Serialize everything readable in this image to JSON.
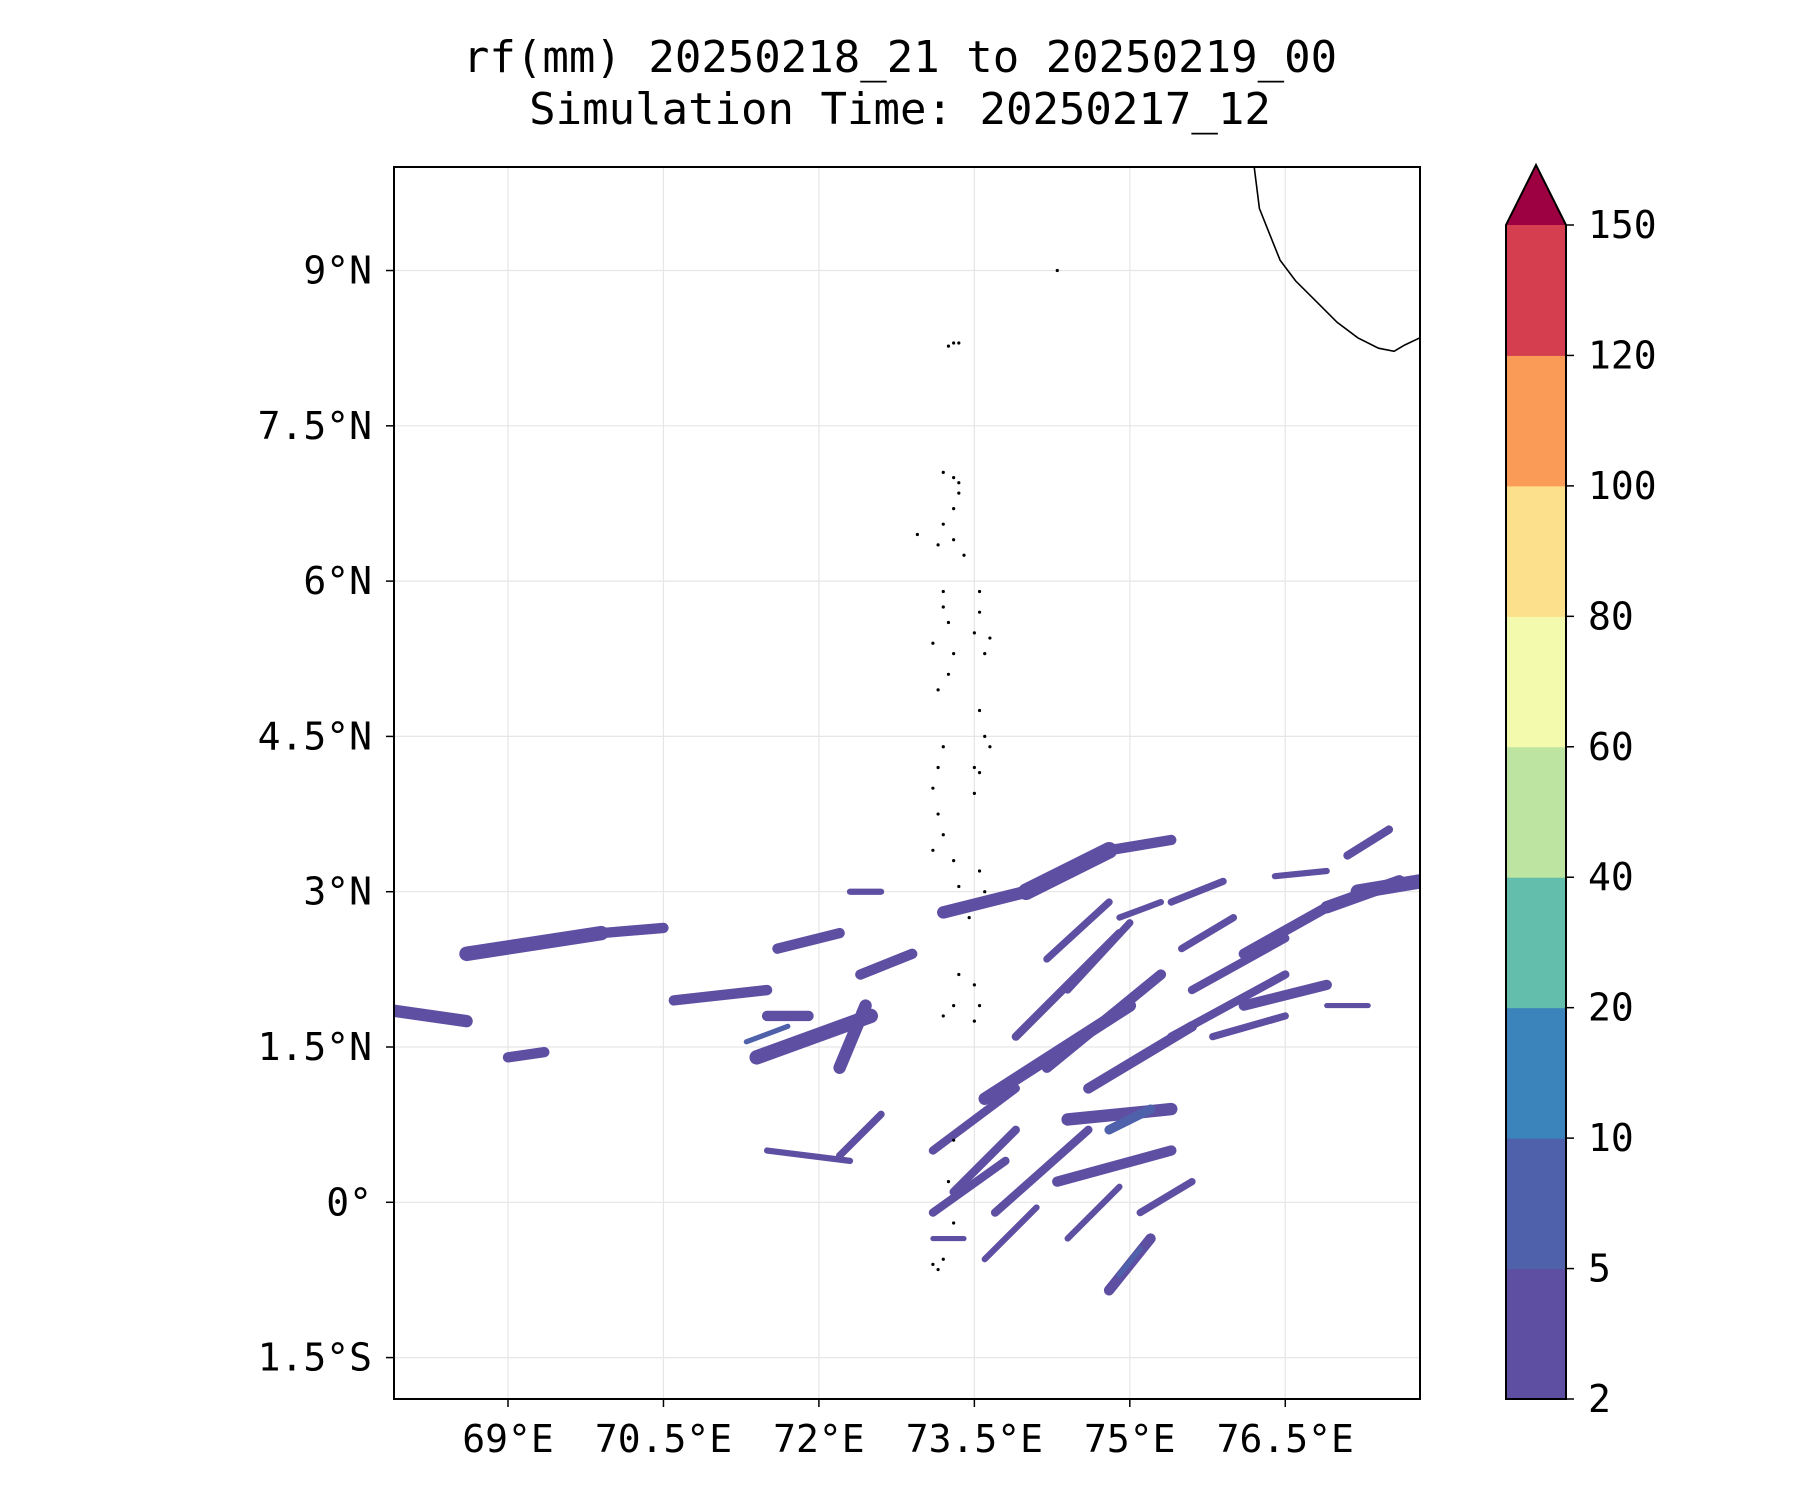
{
  "chart_data": {
    "type": "map-contourf",
    "title": [
      "rf(mm) 20250218_21 to 20250219_00",
      "Simulation Time: 20250217_12"
    ],
    "variable": "rf(mm)",
    "xlim": [
      67.9,
      77.8
    ],
    "ylim": [
      -1.9,
      10.0
    ],
    "x_ticks": [
      69,
      70.5,
      72,
      73.5,
      75,
      76.5
    ],
    "x_tick_labels": [
      "69°E",
      "70.5°E",
      "72°E",
      "73.5°E",
      "75°E",
      "76.5°E"
    ],
    "y_ticks": [
      9,
      7.5,
      6,
      4.5,
      3,
      1.5,
      0,
      -1.5
    ],
    "y_tick_labels": [
      "9°N",
      "7.5°N",
      "6°N",
      "4.5°N",
      "3°N",
      "1.5°N",
      "0°",
      "1.5°S"
    ],
    "grid": true,
    "colorbar": {
      "levels": [
        2,
        5,
        10,
        20,
        40,
        60,
        80,
        100,
        120,
        150
      ],
      "labels": [
        "2",
        "5",
        "10",
        "20",
        "40",
        "60",
        "80",
        "100",
        "120",
        "150"
      ],
      "colors": [
        "#5e4fa2",
        "#4f61aa",
        "#3b83bb",
        "#63bfab",
        "#bde4a0",
        "#f3faad",
        "#fce08b",
        "#fa9c58",
        "#d53e4f"
      ],
      "extend_color": "#9e0142",
      "extend": "max"
    },
    "rain_bands": [
      {
        "lon1": 67.9,
        "lat1": 1.85,
        "lon2": 68.6,
        "lat2": 1.75,
        "w": 0.12,
        "level": 0
      },
      {
        "lon1": 68.6,
        "lat1": 2.4,
        "lon2": 69.9,
        "lat2": 2.6,
        "w": 0.14,
        "level": 0
      },
      {
        "lon1": 69.9,
        "lat1": 2.6,
        "lon2": 70.5,
        "lat2": 2.65,
        "w": 0.1,
        "level": 0
      },
      {
        "lon1": 69.0,
        "lat1": 1.4,
        "lon2": 69.35,
        "lat2": 1.45,
        "w": 0.1,
        "level": 0
      },
      {
        "lon1": 70.6,
        "lat1": 1.95,
        "lon2": 71.5,
        "lat2": 2.05,
        "w": 0.1,
        "level": 0
      },
      {
        "lon1": 71.5,
        "lat1": 1.8,
        "lon2": 71.9,
        "lat2": 1.8,
        "w": 0.1,
        "level": 0
      },
      {
        "lon1": 71.4,
        "lat1": 1.4,
        "lon2": 72.5,
        "lat2": 1.8,
        "w": 0.14,
        "level": 0
      },
      {
        "lon1": 72.2,
        "lat1": 1.3,
        "lon2": 72.45,
        "lat2": 1.9,
        "w": 0.12,
        "level": 0
      },
      {
        "lon1": 71.6,
        "lat1": 2.45,
        "lon2": 72.2,
        "lat2": 2.6,
        "w": 0.1,
        "level": 0
      },
      {
        "lon1": 72.3,
        "lat1": 3.0,
        "lon2": 72.6,
        "lat2": 3.0,
        "w": 0.06,
        "level": 0
      },
      {
        "lon1": 72.4,
        "lat1": 2.2,
        "lon2": 72.9,
        "lat2": 2.4,
        "w": 0.1,
        "level": 0
      },
      {
        "lon1": 73.2,
        "lat1": 2.8,
        "lon2": 74.0,
        "lat2": 3.0,
        "w": 0.12,
        "level": 0
      },
      {
        "lon1": 74.0,
        "lat1": 3.0,
        "lon2": 74.8,
        "lat2": 3.4,
        "w": 0.16,
        "level": 0
      },
      {
        "lon1": 74.8,
        "lat1": 3.4,
        "lon2": 75.4,
        "lat2": 3.5,
        "w": 0.1,
        "level": 0
      },
      {
        "lon1": 74.2,
        "lat1": 2.35,
        "lon2": 74.8,
        "lat2": 2.9,
        "w": 0.07,
        "level": 0
      },
      {
        "lon1": 74.4,
        "lat1": 2.05,
        "lon2": 75.0,
        "lat2": 2.7,
        "w": 0.07,
        "level": 0
      },
      {
        "lon1": 73.9,
        "lat1": 1.6,
        "lon2": 74.9,
        "lat2": 2.6,
        "w": 0.08,
        "level": 0
      },
      {
        "lon1": 74.2,
        "lat1": 1.3,
        "lon2": 75.3,
        "lat2": 2.2,
        "w": 0.1,
        "level": 0
      },
      {
        "lon1": 73.6,
        "lat1": 1.0,
        "lon2": 75.0,
        "lat2": 1.9,
        "w": 0.12,
        "level": 0
      },
      {
        "lon1": 74.6,
        "lat1": 1.1,
        "lon2": 75.6,
        "lat2": 1.7,
        "w": 0.1,
        "level": 0
      },
      {
        "lon1": 73.1,
        "lat1": 0.5,
        "lon2": 73.9,
        "lat2": 1.1,
        "w": 0.08,
        "level": 0
      },
      {
        "lon1": 73.3,
        "lat1": 0.1,
        "lon2": 73.9,
        "lat2": 0.7,
        "w": 0.08,
        "level": 0
      },
      {
        "lon1": 73.7,
        "lat1": -0.1,
        "lon2": 74.6,
        "lat2": 0.7,
        "w": 0.08,
        "level": 0
      },
      {
        "lon1": 74.4,
        "lat1": 0.8,
        "lon2": 75.4,
        "lat2": 0.9,
        "w": 0.12,
        "level": 0
      },
      {
        "lon1": 74.3,
        "lat1": 0.2,
        "lon2": 75.4,
        "lat2": 0.5,
        "w": 0.1,
        "level": 0
      },
      {
        "lon1": 73.1,
        "lat1": -0.1,
        "lon2": 73.8,
        "lat2": 0.4,
        "w": 0.08,
        "level": 0
      },
      {
        "lon1": 73.6,
        "lat1": -0.55,
        "lon2": 74.1,
        "lat2": -0.05,
        "w": 0.06,
        "level": 0
      },
      {
        "lon1": 74.4,
        "lat1": -0.35,
        "lon2": 74.9,
        "lat2": 0.15,
        "w": 0.06,
        "level": 0
      },
      {
        "lon1": 75.1,
        "lat1": -0.1,
        "lon2": 75.6,
        "lat2": 0.2,
        "w": 0.07,
        "level": 0
      },
      {
        "lon1": 74.8,
        "lat1": -0.85,
        "lon2": 75.2,
        "lat2": -0.35,
        "w": 0.1,
        "level": 0
      },
      {
        "lon1": 73.1,
        "lat1": -0.35,
        "lon2": 73.4,
        "lat2": -0.35,
        "w": 0.05,
        "level": 0
      },
      {
        "lon1": 71.5,
        "lat1": 0.5,
        "lon2": 72.3,
        "lat2": 0.4,
        "w": 0.06,
        "level": 0
      },
      {
        "lon1": 72.2,
        "lat1": 0.45,
        "lon2": 72.6,
        "lat2": 0.85,
        "w": 0.07,
        "level": 0
      },
      {
        "lon1": 75.4,
        "lat1": 2.9,
        "lon2": 75.9,
        "lat2": 3.1,
        "w": 0.07,
        "level": 0
      },
      {
        "lon1": 74.9,
        "lat1": 2.75,
        "lon2": 75.3,
        "lat2": 2.9,
        "w": 0.06,
        "level": 0
      },
      {
        "lon1": 75.5,
        "lat1": 2.45,
        "lon2": 76.0,
        "lat2": 2.75,
        "w": 0.07,
        "level": 0
      },
      {
        "lon1": 75.6,
        "lat1": 2.05,
        "lon2": 76.5,
        "lat2": 2.55,
        "w": 0.08,
        "level": 0
      },
      {
        "lon1": 75.4,
        "lat1": 1.6,
        "lon2": 76.5,
        "lat2": 2.2,
        "w": 0.08,
        "level": 0
      },
      {
        "lon1": 76.1,
        "lat1": 2.4,
        "lon2": 76.9,
        "lat2": 2.85,
        "w": 0.1,
        "level": 0
      },
      {
        "lon1": 76.9,
        "lat1": 2.85,
        "lon2": 77.6,
        "lat2": 3.1,
        "w": 0.12,
        "level": 0
      },
      {
        "lon1": 77.2,
        "lat1": 3.0,
        "lon2": 77.8,
        "lat2": 3.1,
        "w": 0.14,
        "level": 0
      },
      {
        "lon1": 76.1,
        "lat1": 1.9,
        "lon2": 76.9,
        "lat2": 2.1,
        "w": 0.1,
        "level": 0
      },
      {
        "lon1": 75.8,
        "lat1": 1.6,
        "lon2": 76.5,
        "lat2": 1.8,
        "w": 0.07,
        "level": 0
      },
      {
        "lon1": 76.4,
        "lat1": 3.15,
        "lon2": 76.9,
        "lat2": 3.2,
        "w": 0.06,
        "level": 0
      },
      {
        "lon1": 77.1,
        "lat1": 3.35,
        "lon2": 77.5,
        "lat2": 3.6,
        "w": 0.08,
        "level": 0
      },
      {
        "lon1": 76.9,
        "lat1": 1.9,
        "lon2": 77.3,
        "lat2": 1.9,
        "w": 0.05,
        "level": 0
      },
      {
        "lon1": 74.8,
        "lat1": 0.7,
        "lon2": 75.2,
        "lat2": 0.9,
        "w": 0.09,
        "level": 1
      },
      {
        "lon1": 74.9,
        "lat1": -0.7,
        "lon2": 75.1,
        "lat2": -0.45,
        "w": 0.05,
        "level": 1
      },
      {
        "lon1": 71.3,
        "lat1": 1.55,
        "lon2": 71.7,
        "lat2": 1.7,
        "w": 0.05,
        "level": 1
      }
    ],
    "coastline": [
      [
        76.2,
        10.0
      ],
      [
        76.25,
        9.6
      ],
      [
        76.35,
        9.35
      ],
      [
        76.45,
        9.1
      ],
      [
        76.6,
        8.9
      ],
      [
        76.8,
        8.7
      ],
      [
        77.0,
        8.5
      ],
      [
        77.2,
        8.35
      ],
      [
        77.4,
        8.25
      ],
      [
        77.55,
        8.22
      ],
      [
        77.65,
        8.28
      ],
      [
        77.8,
        8.35
      ]
    ],
    "islands": [
      [
        73.25,
        8.27
      ],
      [
        73.3,
        8.3
      ],
      [
        73.2,
        7.05
      ],
      [
        73.3,
        7.0
      ],
      [
        73.35,
        6.95
      ],
      [
        73.35,
        6.85
      ],
      [
        73.3,
        6.7
      ],
      [
        73.2,
        6.55
      ],
      [
        73.3,
        6.4
      ],
      [
        73.4,
        6.25
      ],
      [
        73.15,
        6.35
      ],
      [
        73.2,
        5.9
      ],
      [
        73.2,
        5.75
      ],
      [
        73.25,
        5.6
      ],
      [
        73.1,
        5.4
      ],
      [
        73.3,
        5.3
      ],
      [
        73.25,
        5.1
      ],
      [
        73.15,
        4.95
      ],
      [
        73.55,
        5.9
      ],
      [
        73.55,
        5.7
      ],
      [
        73.5,
        5.5
      ],
      [
        73.65,
        5.45
      ],
      [
        73.6,
        5.3
      ],
      [
        73.55,
        4.75
      ],
      [
        73.6,
        4.5
      ],
      [
        73.65,
        4.4
      ],
      [
        73.5,
        4.2
      ],
      [
        73.55,
        4.15
      ],
      [
        73.5,
        3.95
      ],
      [
        73.2,
        4.4
      ],
      [
        73.15,
        4.2
      ],
      [
        73.1,
        4.0
      ],
      [
        73.15,
        3.75
      ],
      [
        73.2,
        3.55
      ],
      [
        73.1,
        3.4
      ],
      [
        73.3,
        3.3
      ],
      [
        73.35,
        3.05
      ],
      [
        73.55,
        3.2
      ],
      [
        73.6,
        3.0
      ],
      [
        73.45,
        2.75
      ],
      [
        73.35,
        2.2
      ],
      [
        73.5,
        2.1
      ],
      [
        73.55,
        1.9
      ],
      [
        73.5,
        1.75
      ],
      [
        73.3,
        1.9
      ],
      [
        73.2,
        1.8
      ],
      [
        73.3,
        0.6
      ],
      [
        73.25,
        0.2
      ],
      [
        73.3,
        -0.2
      ],
      [
        73.1,
        -0.6
      ],
      [
        73.15,
        -0.65
      ],
      [
        73.2,
        -0.55
      ],
      [
        72.95,
        6.45
      ],
      [
        74.3,
        9.0
      ],
      [
        73.35,
        8.3
      ]
    ]
  }
}
